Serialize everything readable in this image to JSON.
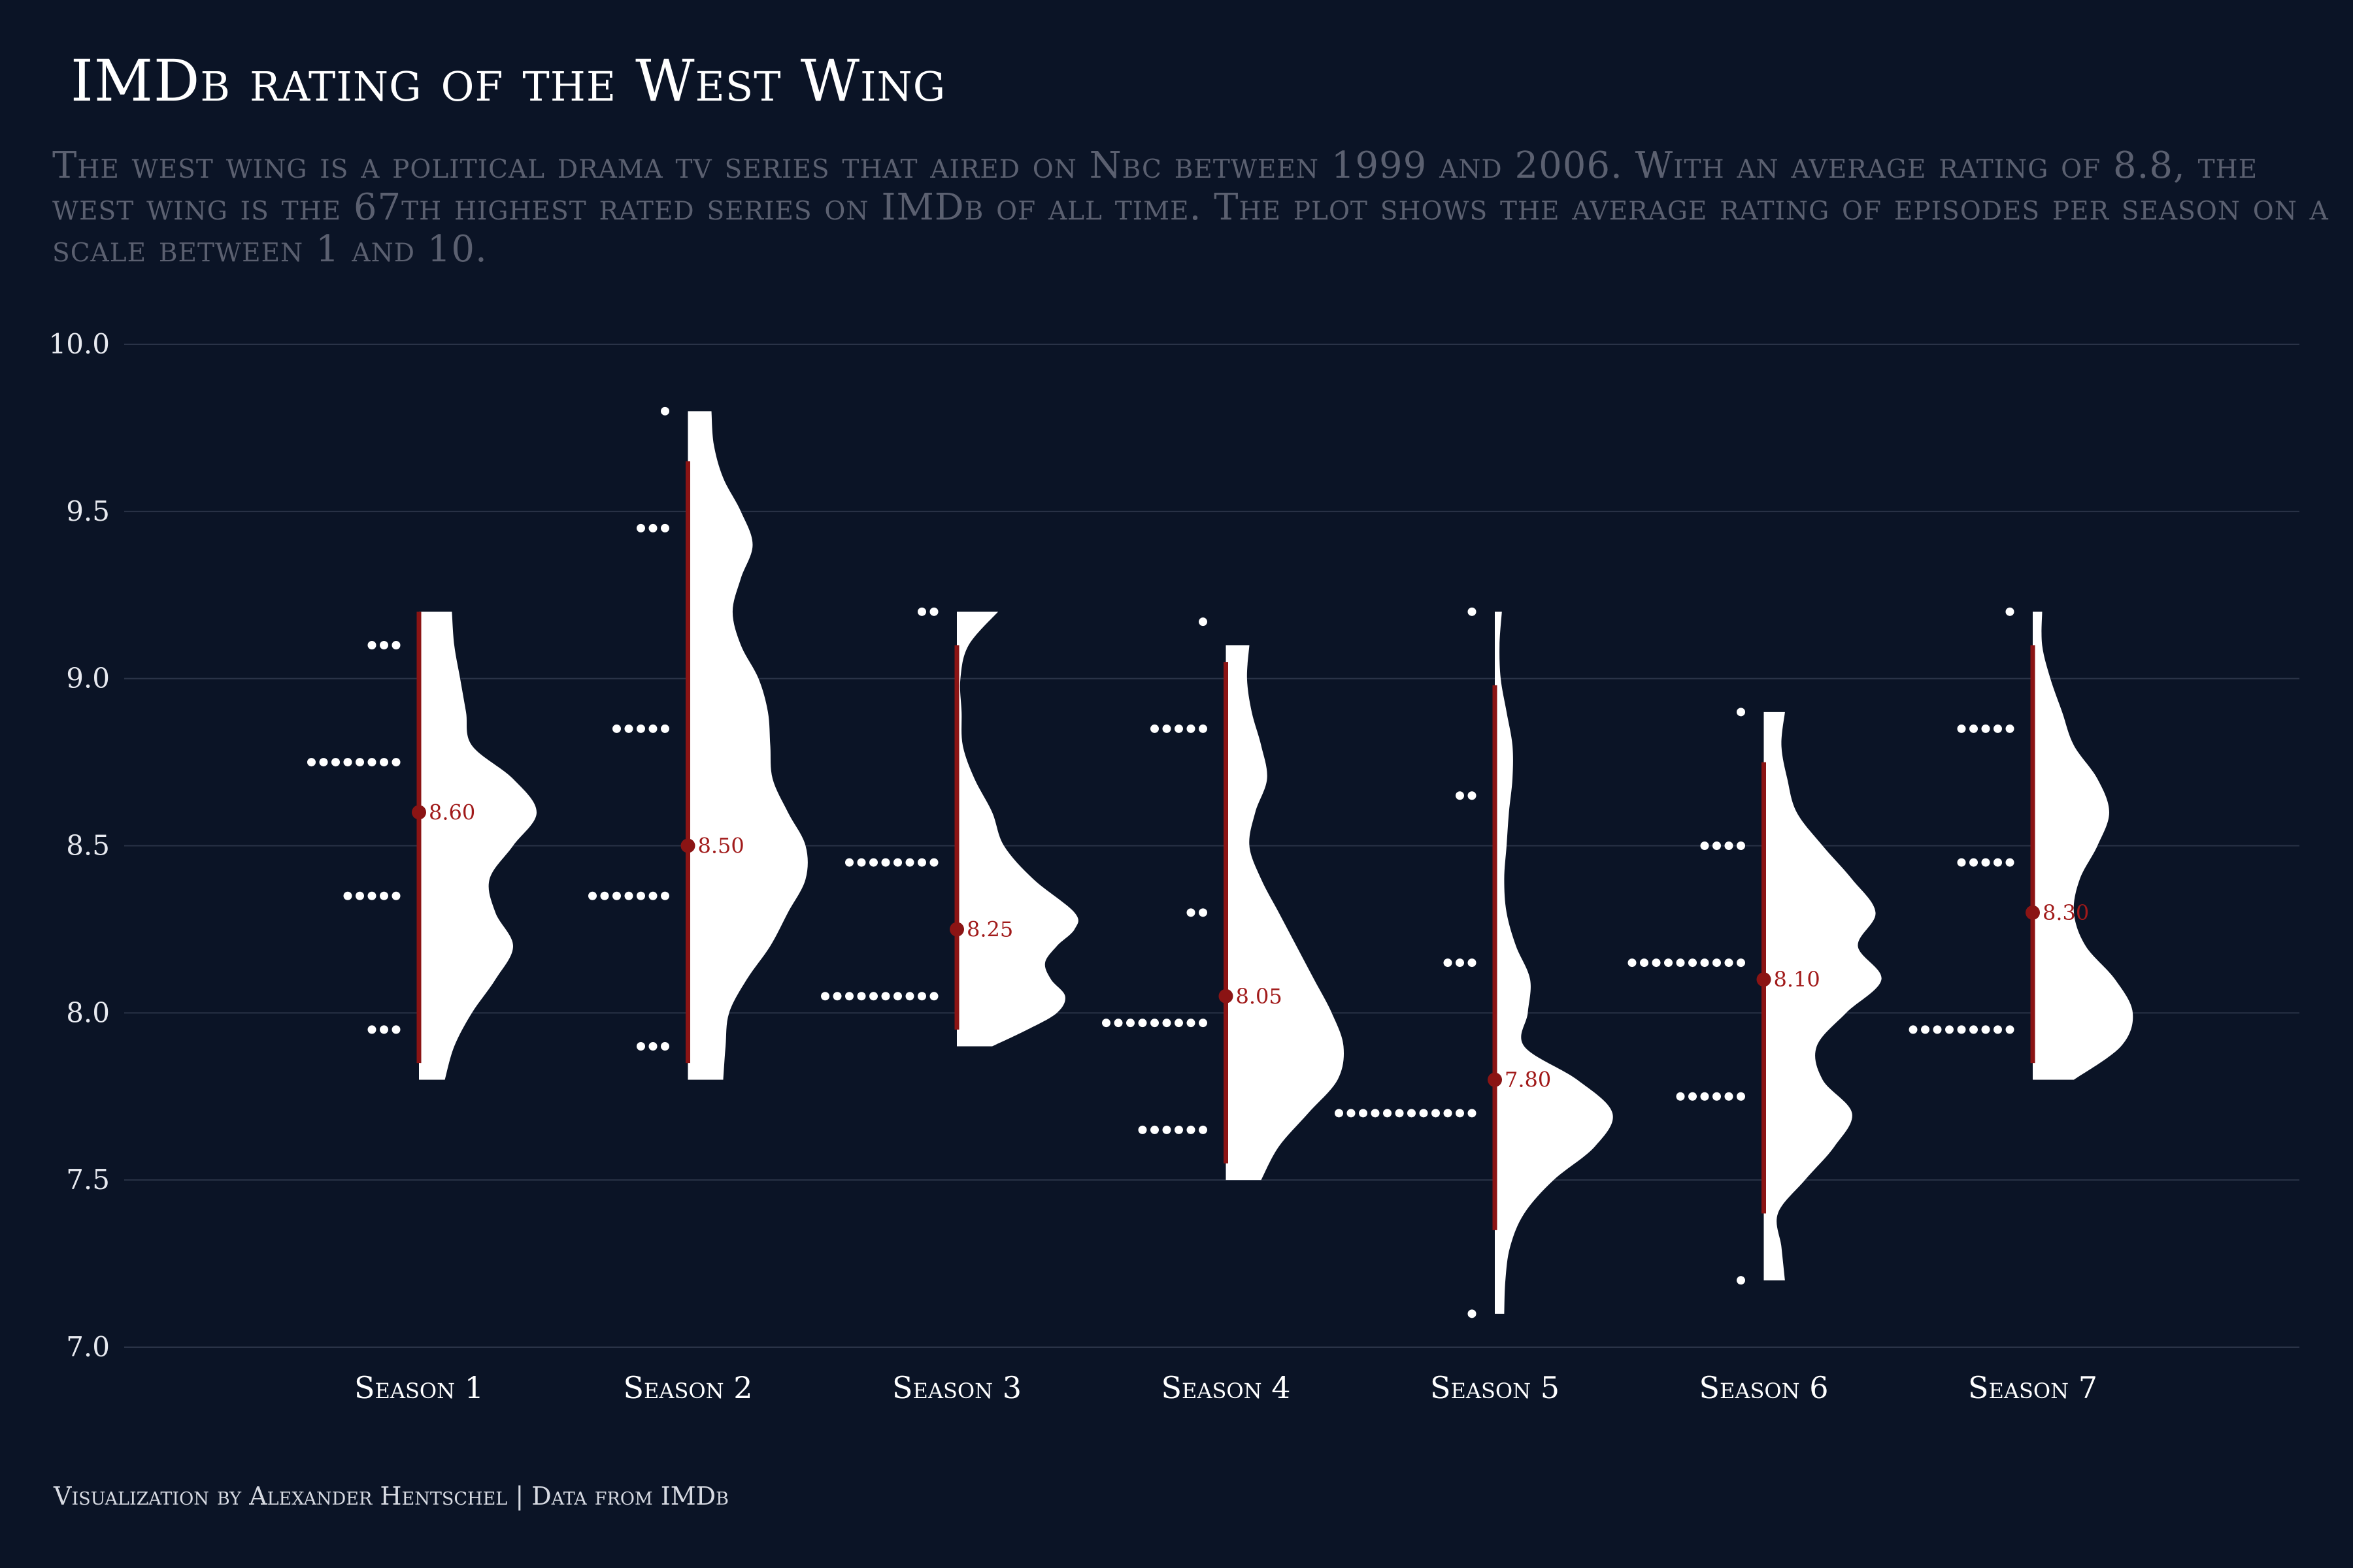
{
  "chart_data": {
    "type": "raincloud",
    "title": "IMDb rating of the West Wing",
    "subtitle": "The west wing is a political drama tv series that aired on Nbc between 1999 and 2006. With an average rating of 8.8, the west wing is the 67th highest rated series on IMDb of all time. The plot shows the average rating of episodes per season on a scale between 1 and 10.",
    "caption": "Visualization by Alexander Hentschel | Data from IMDb",
    "ylim": [
      7.0,
      10.0
    ],
    "yticks": [
      "7.0",
      "7.5",
      "8.0",
      "8.5",
      "9.0",
      "9.5",
      "10.0"
    ],
    "grid": true,
    "colors": {
      "background": "#0b1426",
      "dots": "#ffffff",
      "density": "#ffffff",
      "interval": "#8b1414",
      "label": "#a11a1a",
      "grid": "#2a3347"
    },
    "seasons": [
      {
        "name": "Season 1",
        "median": 8.6,
        "median_label": "8.60",
        "range": [
          7.85,
          9.2
        ],
        "dots": [
          {
            "y": 9.1,
            "n": 3
          },
          {
            "y": 8.75,
            "n": 8
          },
          {
            "y": 8.35,
            "n": 5
          },
          {
            "y": 7.95,
            "n": 3
          }
        ],
        "density": {
          "y": [
            7.8,
            7.9,
            8.0,
            8.1,
            8.2,
            8.3,
            8.4,
            8.5,
            8.6,
            8.7,
            8.8,
            8.9,
            9.0,
            9.1,
            9.2
          ],
          "w": [
            0.22,
            0.3,
            0.45,
            0.65,
            0.8,
            0.65,
            0.6,
            0.8,
            1.0,
            0.8,
            0.45,
            0.4,
            0.35,
            0.3,
            0.28
          ]
        }
      },
      {
        "name": "Season 2",
        "median": 8.5,
        "median_label": "8.50",
        "range": [
          7.85,
          9.65
        ],
        "dots": [
          {
            "y": 9.8,
            "n": 1
          },
          {
            "y": 9.45,
            "n": 3
          },
          {
            "y": 8.85,
            "n": 5
          },
          {
            "y": 8.35,
            "n": 7
          },
          {
            "y": 7.9,
            "n": 3
          }
        ],
        "density": {
          "y": [
            7.8,
            7.9,
            8.0,
            8.1,
            8.2,
            8.3,
            8.4,
            8.5,
            8.6,
            8.7,
            8.8,
            8.9,
            9.0,
            9.1,
            9.2,
            9.3,
            9.4,
            9.5,
            9.6,
            9.7,
            9.8
          ],
          "w": [
            0.3,
            0.32,
            0.35,
            0.5,
            0.7,
            0.85,
            1.0,
            1.0,
            0.85,
            0.72,
            0.7,
            0.68,
            0.6,
            0.45,
            0.38,
            0.45,
            0.55,
            0.45,
            0.3,
            0.22,
            0.2
          ]
        }
      },
      {
        "name": "Season 3",
        "median": 8.25,
        "median_label": "8.25",
        "range": [
          7.95,
          9.1
        ],
        "dots": [
          {
            "y": 9.2,
            "n": 2
          },
          {
            "y": 8.45,
            "n": 8
          },
          {
            "y": 8.05,
            "n": 10
          }
        ],
        "density": {
          "y": [
            7.9,
            7.95,
            8.0,
            8.05,
            8.1,
            8.15,
            8.2,
            8.25,
            8.3,
            8.4,
            8.5,
            8.6,
            8.7,
            8.8,
            8.9,
            9.0,
            9.1,
            9.2
          ],
          "w": [
            0.3,
            0.6,
            0.85,
            0.92,
            0.8,
            0.75,
            0.85,
            1.0,
            1.0,
            0.65,
            0.4,
            0.3,
            0.15,
            0.05,
            0.04,
            0.03,
            0.1,
            0.35
          ]
        }
      },
      {
        "name": "Season 4",
        "median": 8.05,
        "median_label": "8.05",
        "range": [
          7.55,
          9.05
        ],
        "dots": [
          {
            "y": 9.17,
            "n": 1
          },
          {
            "y": 8.85,
            "n": 5
          },
          {
            "y": 8.3,
            "n": 2
          },
          {
            "y": 7.97,
            "n": 9
          },
          {
            "y": 7.65,
            "n": 6
          }
        ],
        "density": {
          "y": [
            7.5,
            7.6,
            7.7,
            7.8,
            7.9,
            8.0,
            8.1,
            8.2,
            8.3,
            8.4,
            8.5,
            8.6,
            8.7,
            8.8,
            8.9,
            9.0,
            9.1
          ],
          "w": [
            0.3,
            0.45,
            0.7,
            0.95,
            1.0,
            0.9,
            0.75,
            0.6,
            0.45,
            0.3,
            0.2,
            0.25,
            0.35,
            0.3,
            0.22,
            0.18,
            0.2
          ]
        }
      },
      {
        "name": "Season 5",
        "median": 7.8,
        "median_label": "7.80",
        "range": [
          7.35,
          8.98
        ],
        "dots": [
          {
            "y": 9.2,
            "n": 1
          },
          {
            "y": 8.65,
            "n": 2
          },
          {
            "y": 8.15,
            "n": 3
          },
          {
            "y": 7.7,
            "n": 12
          },
          {
            "y": 7.1,
            "n": 1
          }
        ],
        "density": {
          "y": [
            7.1,
            7.2,
            7.3,
            7.4,
            7.5,
            7.6,
            7.7,
            7.8,
            7.9,
            8.0,
            8.1,
            8.2,
            8.3,
            8.4,
            8.5,
            8.6,
            8.7,
            8.8,
            8.9,
            9.0,
            9.1,
            9.2
          ],
          "w": [
            0.08,
            0.09,
            0.13,
            0.25,
            0.5,
            0.85,
            1.0,
            0.7,
            0.25,
            0.28,
            0.3,
            0.18,
            0.1,
            0.08,
            0.1,
            0.12,
            0.15,
            0.15,
            0.1,
            0.05,
            0.04,
            0.06
          ]
        }
      },
      {
        "name": "Season 6",
        "median": 8.1,
        "median_label": "8.10",
        "range": [
          7.4,
          8.75
        ],
        "dots": [
          {
            "y": 8.9,
            "n": 1
          },
          {
            "y": 8.5,
            "n": 4
          },
          {
            "y": 8.15,
            "n": 10
          },
          {
            "y": 7.75,
            "n": 6
          },
          {
            "y": 7.2,
            "n": 1
          }
        ],
        "density": {
          "y": [
            7.2,
            7.3,
            7.4,
            7.5,
            7.6,
            7.7,
            7.8,
            7.9,
            8.0,
            8.1,
            8.2,
            8.3,
            8.4,
            8.5,
            8.6,
            8.7,
            8.8,
            8.9
          ],
          "w": [
            0.18,
            0.15,
            0.12,
            0.35,
            0.6,
            0.75,
            0.5,
            0.45,
            0.7,
            1.0,
            0.8,
            0.95,
            0.75,
            0.5,
            0.28,
            0.2,
            0.15,
            0.18
          ]
        }
      },
      {
        "name": "Season 7",
        "median": 8.3,
        "median_label": "8.30",
        "range": [
          7.85,
          9.1
        ],
        "dots": [
          {
            "y": 9.2,
            "n": 1
          },
          {
            "y": 8.85,
            "n": 5
          },
          {
            "y": 8.45,
            "n": 5
          },
          {
            "y": 7.95,
            "n": 9
          }
        ],
        "density": {
          "y": [
            7.8,
            7.9,
            8.0,
            8.1,
            8.2,
            8.3,
            8.4,
            8.5,
            8.6,
            8.7,
            8.8,
            8.9,
            9.0,
            9.1,
            9.2
          ],
          "w": [
            0.35,
            0.75,
            0.85,
            0.7,
            0.45,
            0.35,
            0.4,
            0.55,
            0.65,
            0.55,
            0.35,
            0.25,
            0.15,
            0.08,
            0.08
          ]
        }
      }
    ]
  }
}
